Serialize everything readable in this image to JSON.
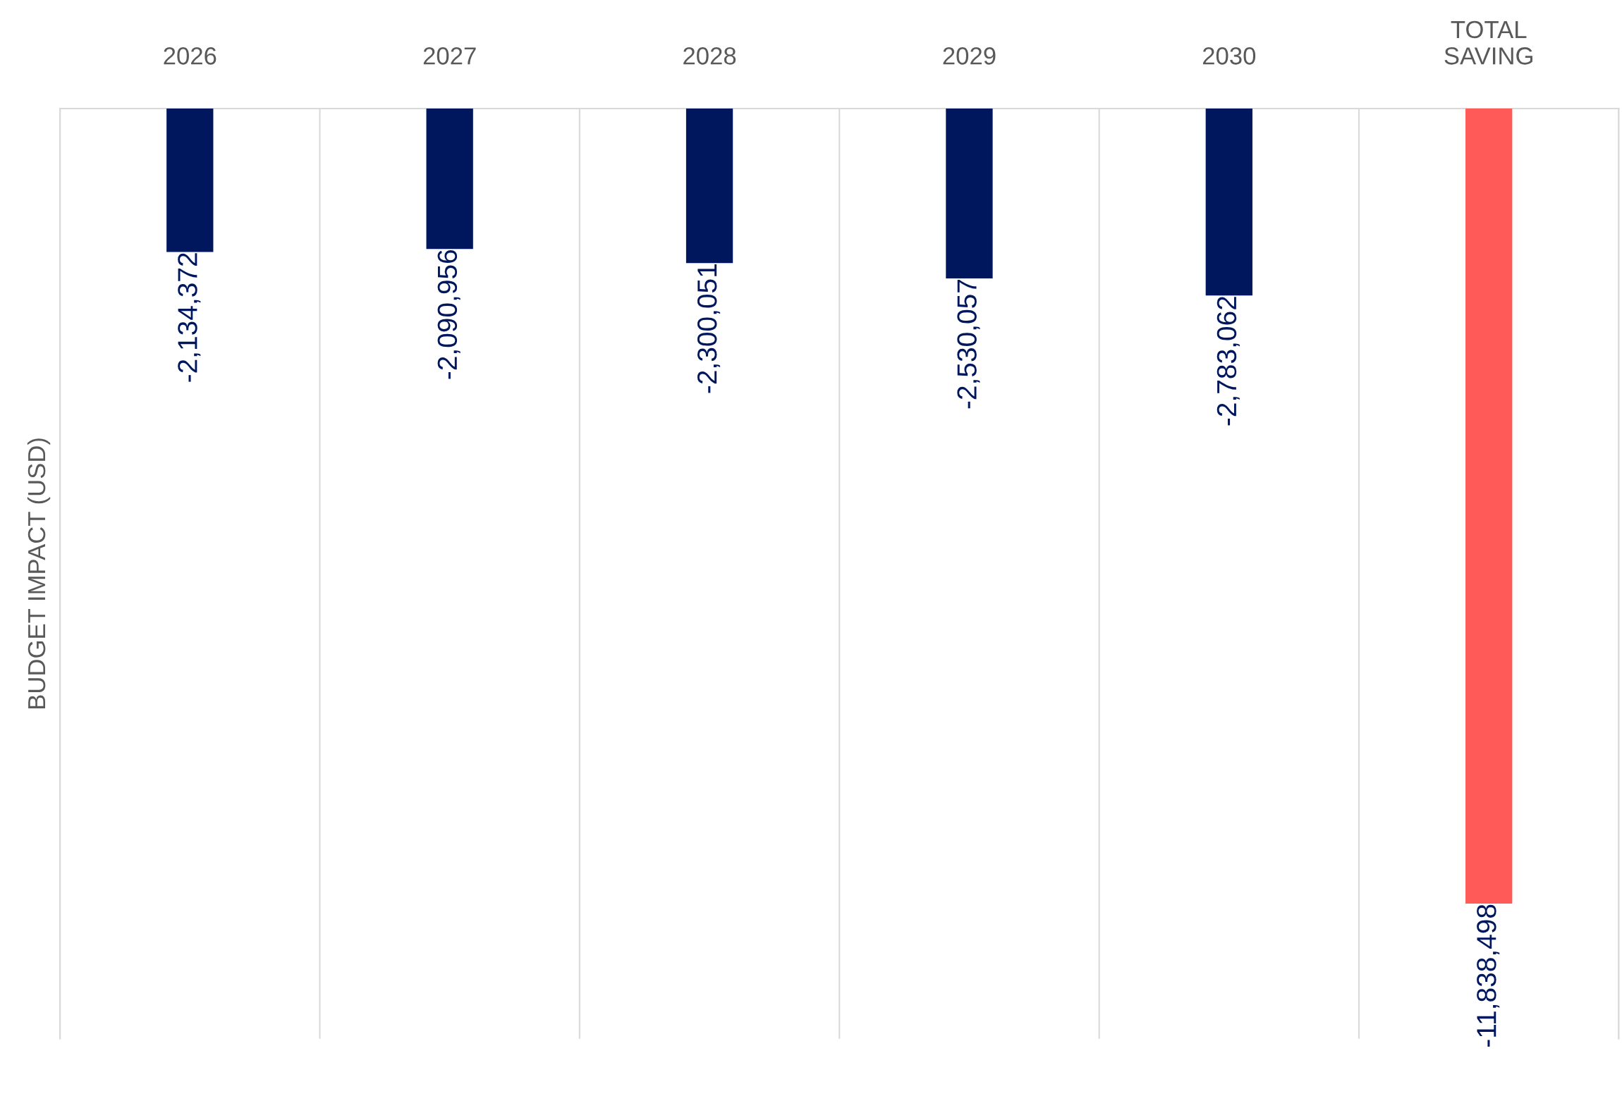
{
  "chart_data": {
    "type": "bar",
    "ylabel": "BUDGET IMPACT (USD)",
    "categories": [
      "2026",
      "2027",
      "2028",
      "2029",
      "2030",
      "TOTAL\nSAVING"
    ],
    "values": [
      -2134372,
      -2090956,
      -2300051,
      -2530057,
      -2783062,
      -11838498
    ],
    "colors": [
      "#00175e",
      "#00175e",
      "#00175e",
      "#00175e",
      "#00175e",
      "#ff5a57"
    ],
    "value_labels": [
      "-2,134,372",
      "-2,090,956",
      "-2,300,051",
      "-2,530,057",
      "-2,783,062",
      "-11,838,498"
    ],
    "grid": "x",
    "legend": false
  }
}
